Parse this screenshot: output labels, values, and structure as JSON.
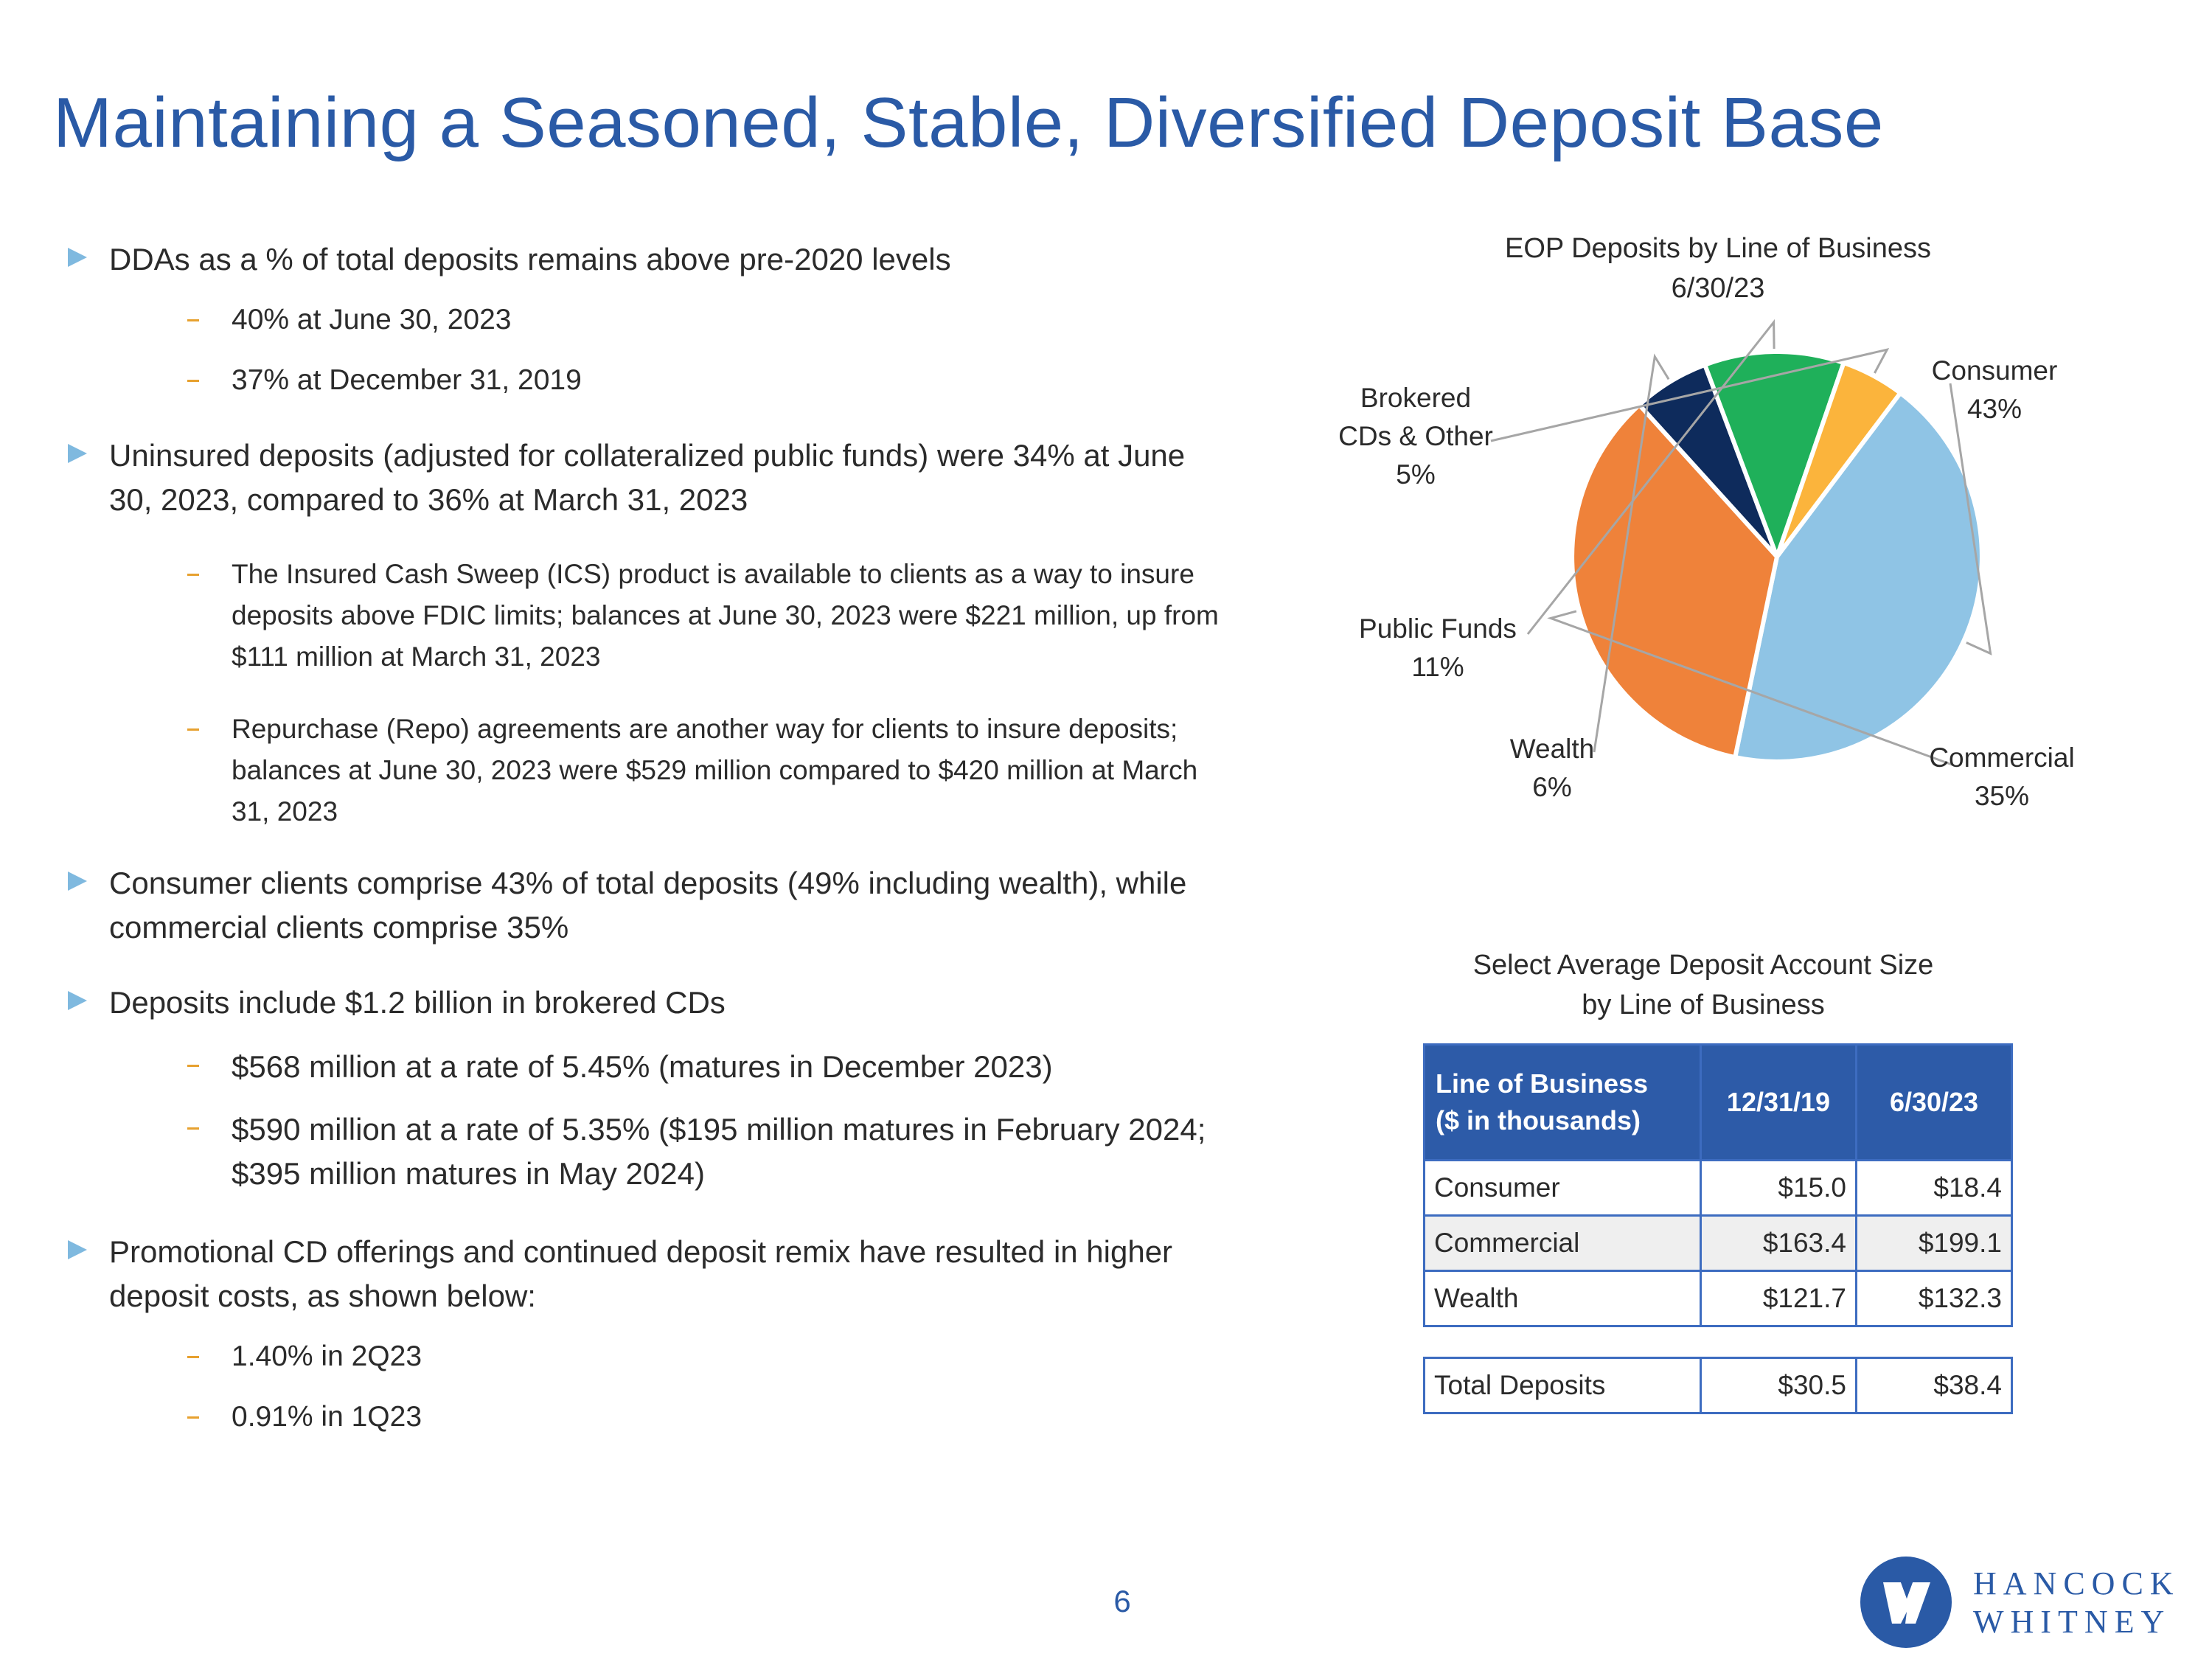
{
  "title": "Maintaining a Seasoned, Stable, Diversified Deposit Base",
  "bullets": [
    {
      "text": "DDAs as a % of total deposits remains above pre-2020 levels",
      "subs": [
        "40% at June 30, 2023",
        "37% at December 31, 2019"
      ]
    },
    {
      "text": "Uninsured deposits (adjusted for collateralized public funds) were 34% at June 30, 2023, compared to 36% at March 31, 2023",
      "subs": [
        "The Insured Cash Sweep (ICS) product is available to clients as a way to insure deposits above FDIC limits; balances at June 30, 2023 were $221 million, up from $111 million at March 31, 2023",
        "Repurchase (Repo) agreements are another way for clients to insure deposits; balances at June 30, 2023 were $529 million compared to $420 million at March 31, 2023"
      ]
    },
    {
      "text": "Consumer clients comprise 43% of total deposits (49% including wealth), while commercial clients comprise 35%",
      "subs": []
    },
    {
      "text": "Deposits include $1.2 billion in brokered CDs",
      "subs": [
        "$568 million at a rate of 5.45% (matures in December 2023)",
        "$590 million at a rate of 5.35% ($195 million matures in February 2024; $395 million matures in May 2024)"
      ]
    },
    {
      "text": "Promotional CD offerings and continued deposit remix have resulted in higher deposit costs, as shown below:",
      "subs": [
        "1.40% in 2Q23",
        "0.91% in 1Q23"
      ]
    }
  ],
  "chart_data": {
    "type": "pie",
    "title": "EOP Deposits by Line of Business",
    "subtitle": "6/30/23",
    "slices": [
      {
        "label": "Consumer",
        "value": 43,
        "value_label": "43%",
        "color": "#8fc4e5"
      },
      {
        "label": "Commercial",
        "value": 35,
        "value_label": "35%",
        "color": "#ef823a"
      },
      {
        "label": "Wealth",
        "value": 6,
        "value_label": "6%",
        "color": "#0e2b5c"
      },
      {
        "label": "Public Funds",
        "value": 11,
        "value_label": "11%",
        "color": "#1fb05a"
      },
      {
        "label": "Brokered CDs & Other",
        "value": 5,
        "value_label": "5%",
        "color": "#fbb43c"
      }
    ]
  },
  "deposit_table": {
    "title_line1": "Select Average Deposit Account Size",
    "title_line2": "by Line of Business",
    "header": {
      "col0_line1": "Line of Business",
      "col0_line2": "($ in thousands)",
      "col1": "12/31/19",
      "col2": "6/30/23"
    },
    "rows": [
      {
        "label": "Consumer",
        "v1": "$15.0",
        "v2": "$18.4"
      },
      {
        "label": "Commercial",
        "v1": "$163.4",
        "v2": "$199.1"
      },
      {
        "label": "Wealth",
        "v1": "$121.7",
        "v2": "$132.3"
      }
    ],
    "total": {
      "label": "Total Deposits",
      "v1": "$30.5",
      "v2": "$38.4"
    }
  },
  "page_number": "6",
  "logo": {
    "line1": "HANCOCK",
    "line2": "WHITNEY",
    "color": "#2a5aa6"
  }
}
